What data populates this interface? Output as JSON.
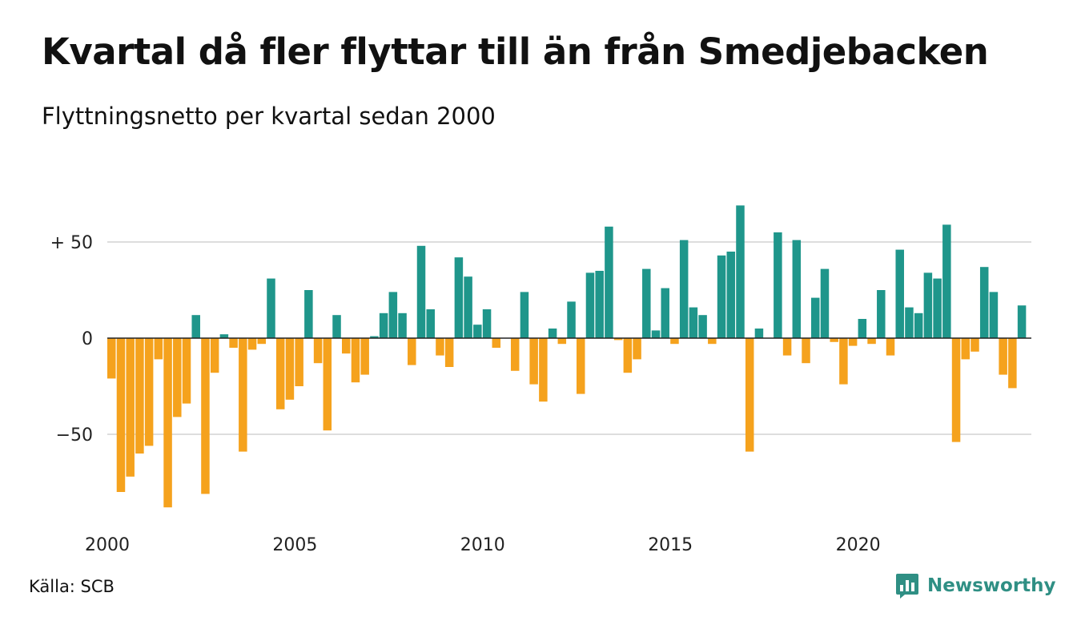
{
  "title": "Kvartal då fler flyttar till än från Smedjebacken",
  "subtitle": "Flyttningsnetto per kvartal sedan 2000",
  "source": "Källa: SCB",
  "brand": {
    "name": "Newsworthy",
    "color": "#2f8f84",
    "icon": "bar-chart-badge-icon"
  },
  "colors": {
    "positive": "#1f968b",
    "negative": "#f5a21d",
    "grid": "#dddddd",
    "zero_line": "#222222"
  },
  "chart_data": {
    "type": "bar",
    "title": "Kvartal då fler flyttar till än från Smedjebacken",
    "subtitle": "Flyttningsnetto per kvartal sedan 2000",
    "xlabel": "",
    "ylabel": "",
    "ylim": [
      -90,
      72
    ],
    "y_ticks": [
      {
        "value": 50,
        "label": "+ 50"
      },
      {
        "value": 0,
        "label": "0"
      },
      {
        "value": -50,
        "label": "−50"
      }
    ],
    "x_ticks": [
      "2000",
      "2005",
      "2010",
      "2015",
      "2020"
    ],
    "grid": true,
    "start_year": 2000,
    "values": [
      -21,
      -80,
      -72,
      -60,
      -56,
      -11,
      -88,
      -41,
      -34,
      12,
      -81,
      -18,
      2,
      -5,
      -59,
      -6,
      -3,
      31,
      -37,
      -32,
      -25,
      25,
      -13,
      -48,
      12,
      -8,
      -23,
      -19,
      1,
      13,
      24,
      13,
      -14,
      48,
      15,
      -9,
      -15,
      42,
      32,
      7,
      15,
      -5,
      0,
      -17,
      24,
      -24,
      -33,
      5,
      -3,
      19,
      -29,
      34,
      35,
      58,
      -1,
      -18,
      -11,
      36,
      4,
      26,
      -3,
      51,
      16,
      12,
      -3,
      43,
      45,
      69,
      -59,
      5,
      0,
      55,
      -9,
      51,
      -13,
      21,
      36,
      -2,
      -24,
      -4,
      10,
      -3,
      25,
      -9,
      46,
      16,
      13,
      34,
      31,
      59,
      -54,
      -11,
      -7,
      37,
      24,
      -19,
      -26,
      17
    ]
  }
}
